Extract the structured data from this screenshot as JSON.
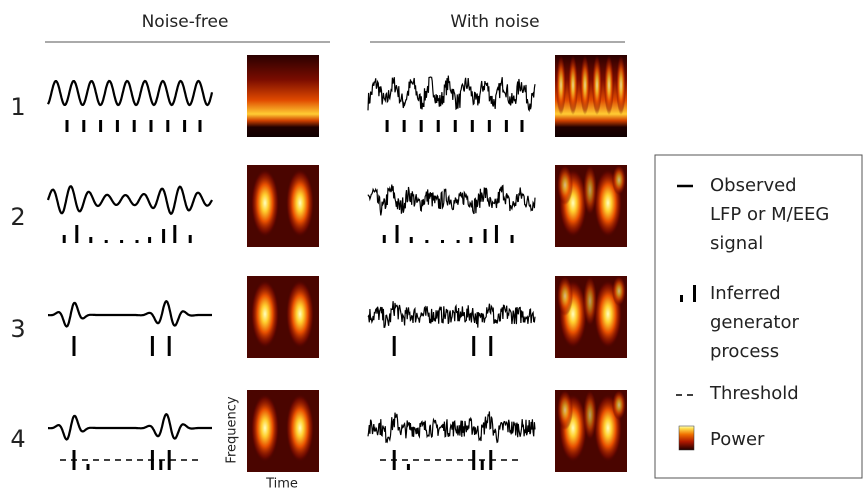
{
  "header": {
    "noise_free": "Noise-free",
    "with_noise": "With noise"
  },
  "rows": [
    "1",
    "2",
    "3",
    "4"
  ],
  "axes": {
    "y": "Frequency",
    "x": "Time"
  },
  "legend": [
    {
      "lines": [
        "Observed",
        "LFP or M/EEG",
        "signal"
      ]
    },
    {
      "lines": [
        "Inferred",
        "generator",
        "process"
      ]
    },
    {
      "lines": [
        "Threshold"
      ]
    },
    {
      "lines": [
        "Power"
      ]
    }
  ]
}
